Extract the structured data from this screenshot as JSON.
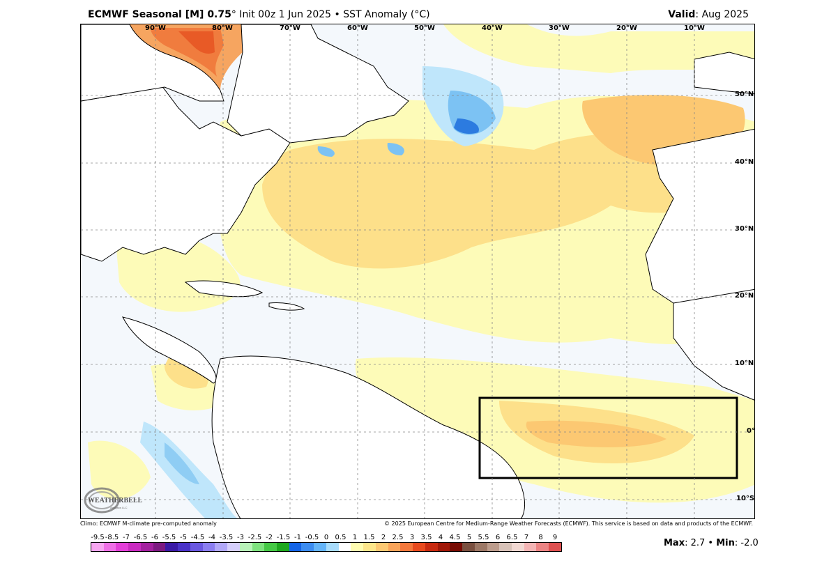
{
  "header": {
    "model": "ECMWF Seasonal [M] 0.75",
    "degree": "°",
    "init_text": " Init 00z 1 Jun 2025 • SST Anomaly (°C)",
    "valid_label": "Valid",
    "valid_value": ": Aug 2025"
  },
  "map": {
    "longitude_labels": [
      "90°W",
      "80°W",
      "70°W",
      "60°W",
      "50°W",
      "40°W",
      "30°W",
      "20°W",
      "10°W"
    ],
    "latitude_labels": [
      "50°N",
      "40°N",
      "30°N",
      "20°N",
      "10°N",
      "0°",
      "10°S"
    ],
    "highlight_box": "Equatorial Atlantic region box",
    "logo_text": "WEATHERBELL",
    "logo_subtext": "Analytics LLC"
  },
  "footer": {
    "climo": "Climo: ECMWF M-climate pre-computed anomaly",
    "copyright": "© 2025 European Centre for Medium-Range Weather Forecasts (ECMWF). This service is based on data and products of the ECMWF."
  },
  "colorbar": {
    "labels": [
      "-9.5",
      "-8.5",
      "-7",
      "-6.5",
      "-6",
      "-5.5",
      "-5",
      "-4.5",
      "-4",
      "-3.5",
      "-3",
      "-2.5",
      "-2",
      "-1.5",
      "-1",
      "-0.5",
      "0",
      "0.5",
      "1",
      "1.5",
      "2",
      "2.5",
      "3",
      "3.5",
      "4",
      "4.5",
      "5",
      "5.5",
      "6",
      "6.5",
      "7",
      "8",
      "9"
    ],
    "colors": [
      "#f7a6f0",
      "#ef6fe6",
      "#e33fd8",
      "#c92ac0",
      "#a3219f",
      "#7d1a82",
      "#3b1aa6",
      "#4a32c8",
      "#6a58e0",
      "#8b7ef0",
      "#b1a8f8",
      "#d6d0fc",
      "#b8f2b8",
      "#7ee27e",
      "#45c945",
      "#1ea81e",
      "#1464e6",
      "#3c8cf0",
      "#64b4f8",
      "#a8dcfc",
      "#ffffff",
      "#fffcb0",
      "#fde68a",
      "#fcc872",
      "#f9a45a",
      "#f4783c",
      "#e84a1e",
      "#c82a10",
      "#a01808",
      "#780c04",
      "#7a5040",
      "#9c7866",
      "#bc9c8c",
      "#d8c2b8",
      "#f2d8d2",
      "#f4b4b4",
      "#ec8484",
      "#de5050"
    ],
    "max_label": "Max",
    "max_value": ": 2.7 • ",
    "min_label": "Min",
    "min_value": ": -2.0"
  }
}
